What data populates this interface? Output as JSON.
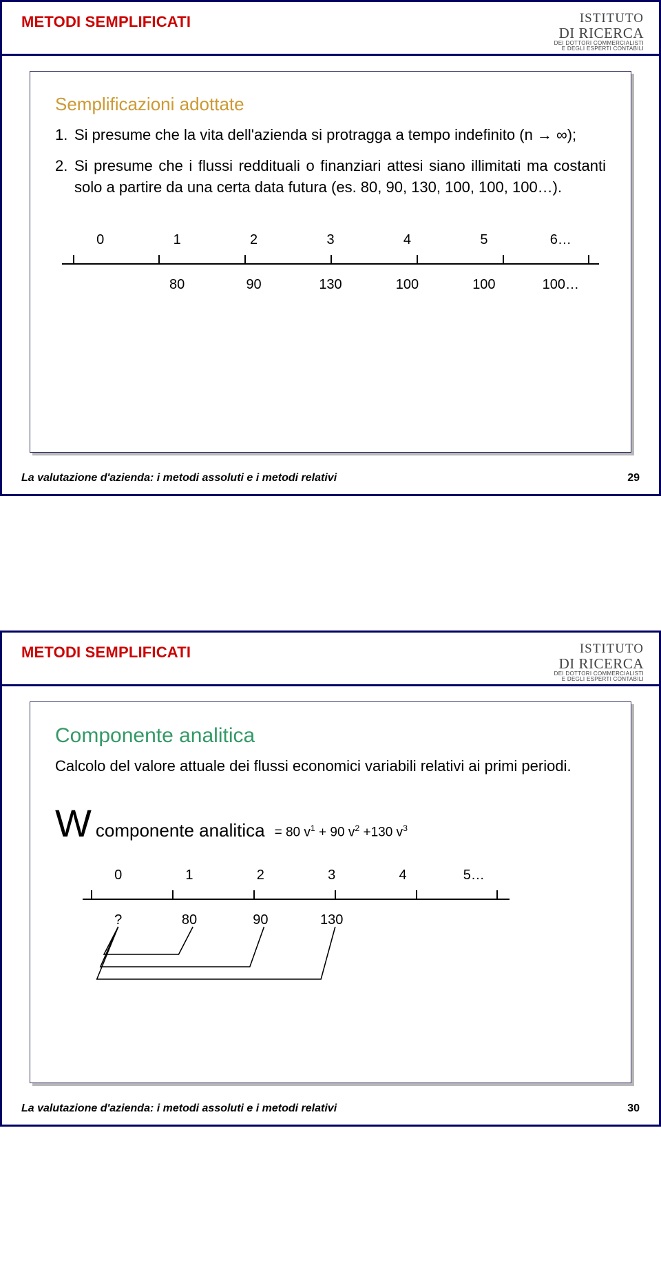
{
  "logo": {
    "line1": "ISTITUTO",
    "line2": "DI RICERCA",
    "line3": "DEI DOTTORI COMMERCIALISTI",
    "line4": "E DEGLI ESPERTI CONTABILI"
  },
  "footer": {
    "text": "La valutazione d'azienda: i metodi assoluti e i metodi relativi"
  },
  "slide29": {
    "title": "METODI SEMPLIFICATI",
    "page": "29",
    "heading": "Semplificazioni adottate",
    "item1_num": "1.",
    "item1_text": "Si presume che la vita dell'azienda si protragga a tempo indefinito (n → ∞);",
    "item2_num": "2.",
    "item2_text": "Si presume che i flussi reddituali o finanziari attesi siano illimitati ma costanti solo a partire da una certa data futura (es. 80, 90, 130, 100, 100, 100…).",
    "timeline": {
      "top": [
        "0",
        "1",
        "2",
        "3",
        "4",
        "5",
        "6…"
      ],
      "bottom": [
        "",
        "80",
        "90",
        "130",
        "100",
        "100",
        "100…"
      ],
      "tick_positions_pct": [
        2,
        18,
        34,
        50,
        66,
        82,
        98
      ]
    }
  },
  "slide30": {
    "title": "METODI SEMPLIFICATI",
    "page": "30",
    "heading": "Componente analitica",
    "body": "Calcolo del valore attuale dei flussi economici variabili relativi ai primi periodi.",
    "formula": {
      "W": "W",
      "sub": "componente analitica",
      "rhs_1": "= 80 v",
      "rhs_2": " + 90 v",
      "rhs_3": " +130 v",
      "s1": "1",
      "s2": "2",
      "s3": "3"
    },
    "timeline": {
      "top": [
        "0",
        "1",
        "2",
        "3",
        "4",
        "5…"
      ],
      "bottom": [
        "?",
        "80",
        "90",
        "130",
        "",
        ""
      ],
      "tick_positions_pct": [
        2,
        21,
        40,
        59,
        78,
        97
      ]
    },
    "colors": {
      "border": "#000066",
      "title": "#cc0000",
      "heading29": "#cc9933",
      "heading30": "#339966"
    }
  }
}
